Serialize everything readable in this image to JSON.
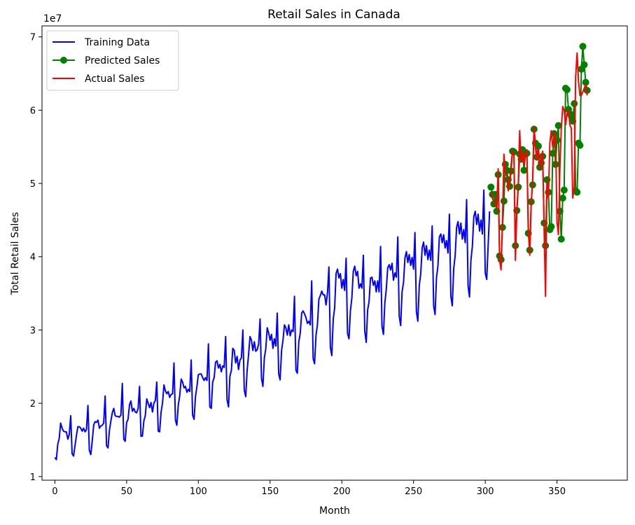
{
  "chart_data": {
    "type": "line",
    "title": "Retail Sales in Canada",
    "xlabel": "Month",
    "ylabel": "Total Retail Sales",
    "y_offset_label": "1e7",
    "xlim": [
      -9,
      399
    ],
    "ylim": [
      0.95,
      7.15
    ],
    "y_unit_multiplier": 10000000,
    "x_ticks": [
      0,
      50,
      100,
      150,
      200,
      250,
      300,
      350
    ],
    "x_tick_labels": [
      "0",
      "50",
      "100",
      "150",
      "200",
      "250",
      "300",
      "350"
    ],
    "y_ticks": [
      1,
      2,
      3,
      4,
      5,
      6,
      7
    ],
    "y_tick_labels": [
      "1",
      "2",
      "3",
      "4",
      "5",
      "6",
      "7"
    ],
    "grid": false,
    "legend_position": "top-left",
    "series": [
      {
        "name": "Training Data",
        "color": "#0000ff",
        "marker": "none",
        "x_start": 0,
        "values": [
          1.26,
          1.23,
          1.44,
          1.52,
          1.73,
          1.66,
          1.62,
          1.61,
          1.61,
          1.51,
          1.57,
          1.83,
          1.31,
          1.28,
          1.42,
          1.56,
          1.68,
          1.68,
          1.66,
          1.62,
          1.66,
          1.61,
          1.64,
          1.97,
          1.36,
          1.3,
          1.48,
          1.7,
          1.75,
          1.74,
          1.77,
          1.66,
          1.69,
          1.7,
          1.73,
          2.1,
          1.42,
          1.39,
          1.63,
          1.76,
          1.87,
          1.93,
          1.83,
          1.82,
          1.82,
          1.81,
          1.84,
          2.27,
          1.51,
          1.48,
          1.74,
          1.78,
          1.98,
          2.03,
          1.89,
          1.93,
          1.88,
          1.87,
          1.93,
          2.23,
          1.55,
          1.55,
          1.76,
          1.83,
          2.06,
          2.0,
          1.94,
          2.01,
          1.88,
          2.0,
          2.04,
          2.29,
          1.62,
          1.61,
          1.88,
          2.0,
          2.25,
          2.17,
          2.13,
          2.16,
          2.08,
          2.12,
          2.13,
          2.55,
          1.77,
          1.7,
          1.98,
          2.1,
          2.33,
          2.29,
          2.21,
          2.23,
          2.15,
          2.19,
          2.16,
          2.59,
          1.84,
          1.78,
          2.09,
          2.23,
          2.39,
          2.4,
          2.4,
          2.35,
          2.31,
          2.35,
          2.31,
          2.81,
          1.95,
          1.93,
          2.29,
          2.35,
          2.56,
          2.58,
          2.48,
          2.53,
          2.43,
          2.51,
          2.49,
          2.91,
          2.05,
          1.95,
          2.37,
          2.45,
          2.75,
          2.72,
          2.55,
          2.64,
          2.46,
          2.59,
          2.62,
          3.0,
          2.18,
          2.09,
          2.45,
          2.67,
          2.91,
          2.86,
          2.72,
          2.84,
          2.71,
          2.73,
          2.81,
          3.15,
          2.34,
          2.23,
          2.62,
          2.74,
          3.03,
          2.96,
          2.86,
          2.94,
          2.75,
          2.88,
          2.78,
          3.23,
          2.4,
          2.32,
          2.72,
          2.86,
          3.07,
          3.03,
          2.93,
          3.07,
          2.92,
          3.0,
          2.98,
          3.46,
          2.45,
          2.41,
          2.84,
          2.95,
          3.23,
          3.26,
          3.22,
          3.17,
          3.09,
          3.12,
          3.07,
          3.67,
          2.61,
          2.54,
          2.93,
          3.07,
          3.42,
          3.47,
          3.53,
          3.48,
          3.48,
          3.34,
          3.51,
          3.86,
          2.76,
          2.65,
          3.15,
          3.3,
          3.77,
          3.83,
          3.71,
          3.77,
          3.57,
          3.69,
          3.54,
          3.98,
          2.95,
          2.88,
          3.26,
          3.44,
          3.8,
          3.87,
          3.74,
          3.8,
          3.57,
          3.63,
          3.57,
          4.02,
          2.99,
          2.83,
          3.27,
          3.39,
          3.71,
          3.72,
          3.61,
          3.67,
          3.52,
          3.67,
          3.52,
          4.14,
          3.05,
          2.94,
          3.37,
          3.56,
          3.85,
          3.89,
          3.82,
          3.91,
          3.68,
          3.78,
          3.72,
          4.27,
          3.19,
          3.06,
          3.52,
          3.65,
          3.98,
          4.07,
          3.92,
          4.03,
          3.88,
          3.99,
          3.83,
          4.33,
          3.25,
          3.12,
          3.61,
          3.76,
          4.12,
          4.2,
          4.02,
          4.15,
          3.96,
          4.09,
          3.95,
          4.42,
          3.33,
          3.21,
          3.72,
          3.87,
          4.27,
          4.31,
          4.19,
          4.3,
          4.12,
          4.22,
          4.05,
          4.58,
          3.46,
          3.33,
          3.84,
          4.01,
          4.4,
          4.48,
          4.31,
          4.46,
          4.24,
          4.37,
          4.19,
          4.78,
          3.6,
          3.45,
          3.96,
          4.14,
          4.55,
          4.62,
          4.44,
          4.58,
          4.35,
          4.5,
          4.31,
          4.91,
          3.78,
          3.69,
          4.14,
          4.62
        ]
      },
      {
        "name": "Predicted Sales",
        "color": "#008000",
        "marker": "circle",
        "x_start": 304,
        "values": [
          4.95,
          4.85,
          4.72,
          4.85,
          4.62,
          5.12,
          4.01,
          3.96,
          4.4,
          4.76,
          5.26,
          5.18,
          5.05,
          4.96,
          5.17,
          5.44,
          5.43,
          4.15,
          4.63,
          4.95,
          5.4,
          5.33,
          5.46,
          5.18,
          5.4,
          5.41,
          4.32,
          4.09,
          4.75,
          4.98,
          5.74,
          5.55,
          5.36,
          5.51,
          5.22,
          5.28,
          5.37,
          4.46,
          4.15,
          5.05,
          4.88,
          4.37,
          4.41,
          5.41,
          5.68,
          5.26,
          5.59,
          5.79,
          4.62,
          4.24,
          4.8,
          4.91,
          6.3,
          6.28,
          6.01,
          5.95,
          5.92,
          5.85,
          6.09,
          4.9,
          4.88,
          5.55,
          5.52,
          6.56,
          6.87,
          6.62,
          6.38,
          6.27
        ]
      },
      {
        "name": "Actual Sales",
        "color": "#ff0000",
        "marker": "none",
        "x_start": 304,
        "values": [
          4.88,
          4.8,
          4.75,
          4.72,
          4.66,
          5.2,
          3.95,
          3.82,
          4.45,
          5.4,
          5.15,
          5.1,
          4.9,
          5.0,
          5.25,
          5.45,
          5.38,
          3.95,
          4.6,
          5.0,
          5.72,
          5.3,
          5.42,
          5.25,
          5.4,
          5.46,
          4.4,
          4.02,
          4.7,
          5.05,
          5.78,
          5.48,
          5.32,
          5.48,
          5.2,
          5.35,
          5.44,
          4.38,
          3.46,
          5.0,
          4.8,
          5.55,
          5.72,
          5.5,
          5.6,
          5.7,
          4.48,
          4.3,
          5.2,
          5.75,
          6.05,
          6.0,
          5.8,
          5.95,
          6.0,
          5.8,
          5.75,
          4.8,
          4.95,
          6.45,
          6.78,
          6.4,
          6.2,
          6.2,
          6.25,
          6.3,
          6.35,
          6.2
        ]
      }
    ]
  }
}
